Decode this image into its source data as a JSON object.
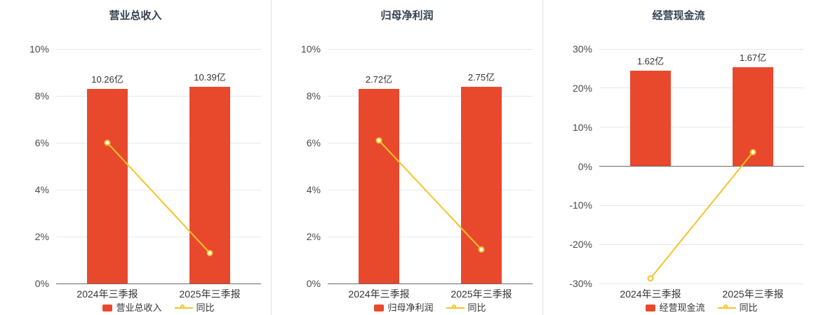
{
  "colors": {
    "bar": "#e8492d",
    "line": "#f5c328",
    "grid": "#e3e8ee",
    "axis": "#6b6b6b",
    "title_text": "#33424f",
    "tick_text": "#4a4a4a",
    "label_text": "#333333",
    "background": "#ffffff"
  },
  "chart_data": [
    {
      "type": "bar",
      "title": "营业总收入",
      "categories": [
        "2024年三季报",
        "2025年三季报"
      ],
      "bar_series": {
        "name": "营业总收入",
        "value_labels": [
          "10.26亿",
          "10.39亿"
        ],
        "display_axis_values": [
          8.3,
          8.4
        ]
      },
      "line_series": {
        "name": "同比",
        "values_pct": [
          6.0,
          1.3
        ]
      },
      "ylim": [
        0,
        10
      ],
      "yticks": [
        "0%",
        "2%",
        "4%",
        "6%",
        "8%",
        "10%"
      ],
      "ytick_values": [
        0,
        2,
        4,
        6,
        8,
        10
      ],
      "grid": true,
      "legend_position": "bottom"
    },
    {
      "type": "bar",
      "title": "归母净利润",
      "categories": [
        "2024年三季报",
        "2025年三季报"
      ],
      "bar_series": {
        "name": "归母净利润",
        "value_labels": [
          "2.72亿",
          "2.75亿"
        ],
        "display_axis_values": [
          8.3,
          8.39
        ]
      },
      "line_series": {
        "name": "同比",
        "values_pct": [
          6.1,
          1.45
        ]
      },
      "ylim": [
        0,
        10
      ],
      "yticks": [
        "0%",
        "2%",
        "4%",
        "6%",
        "8%",
        "10%"
      ],
      "ytick_values": [
        0,
        2,
        4,
        6,
        8,
        10
      ],
      "grid": true,
      "legend_position": "bottom"
    },
    {
      "type": "bar",
      "title": "经营现金流",
      "categories": [
        "2024年三季报",
        "2025年三季报"
      ],
      "bar_series": {
        "name": "经营现金流",
        "value_labels": [
          "1.62亿",
          "1.67亿"
        ],
        "display_axis_values": [
          24.5,
          25.3
        ]
      },
      "line_series": {
        "name": "同比",
        "values_pct": [
          -28.7,
          3.6
        ]
      },
      "ylim": [
        -30,
        30
      ],
      "yticks": [
        "-30%",
        "-20%",
        "-10%",
        "0%",
        "10%",
        "20%",
        "30%"
      ],
      "ytick_values": [
        -30,
        -20,
        -10,
        0,
        10,
        20,
        30
      ],
      "grid": true,
      "legend_position": "bottom"
    }
  ]
}
